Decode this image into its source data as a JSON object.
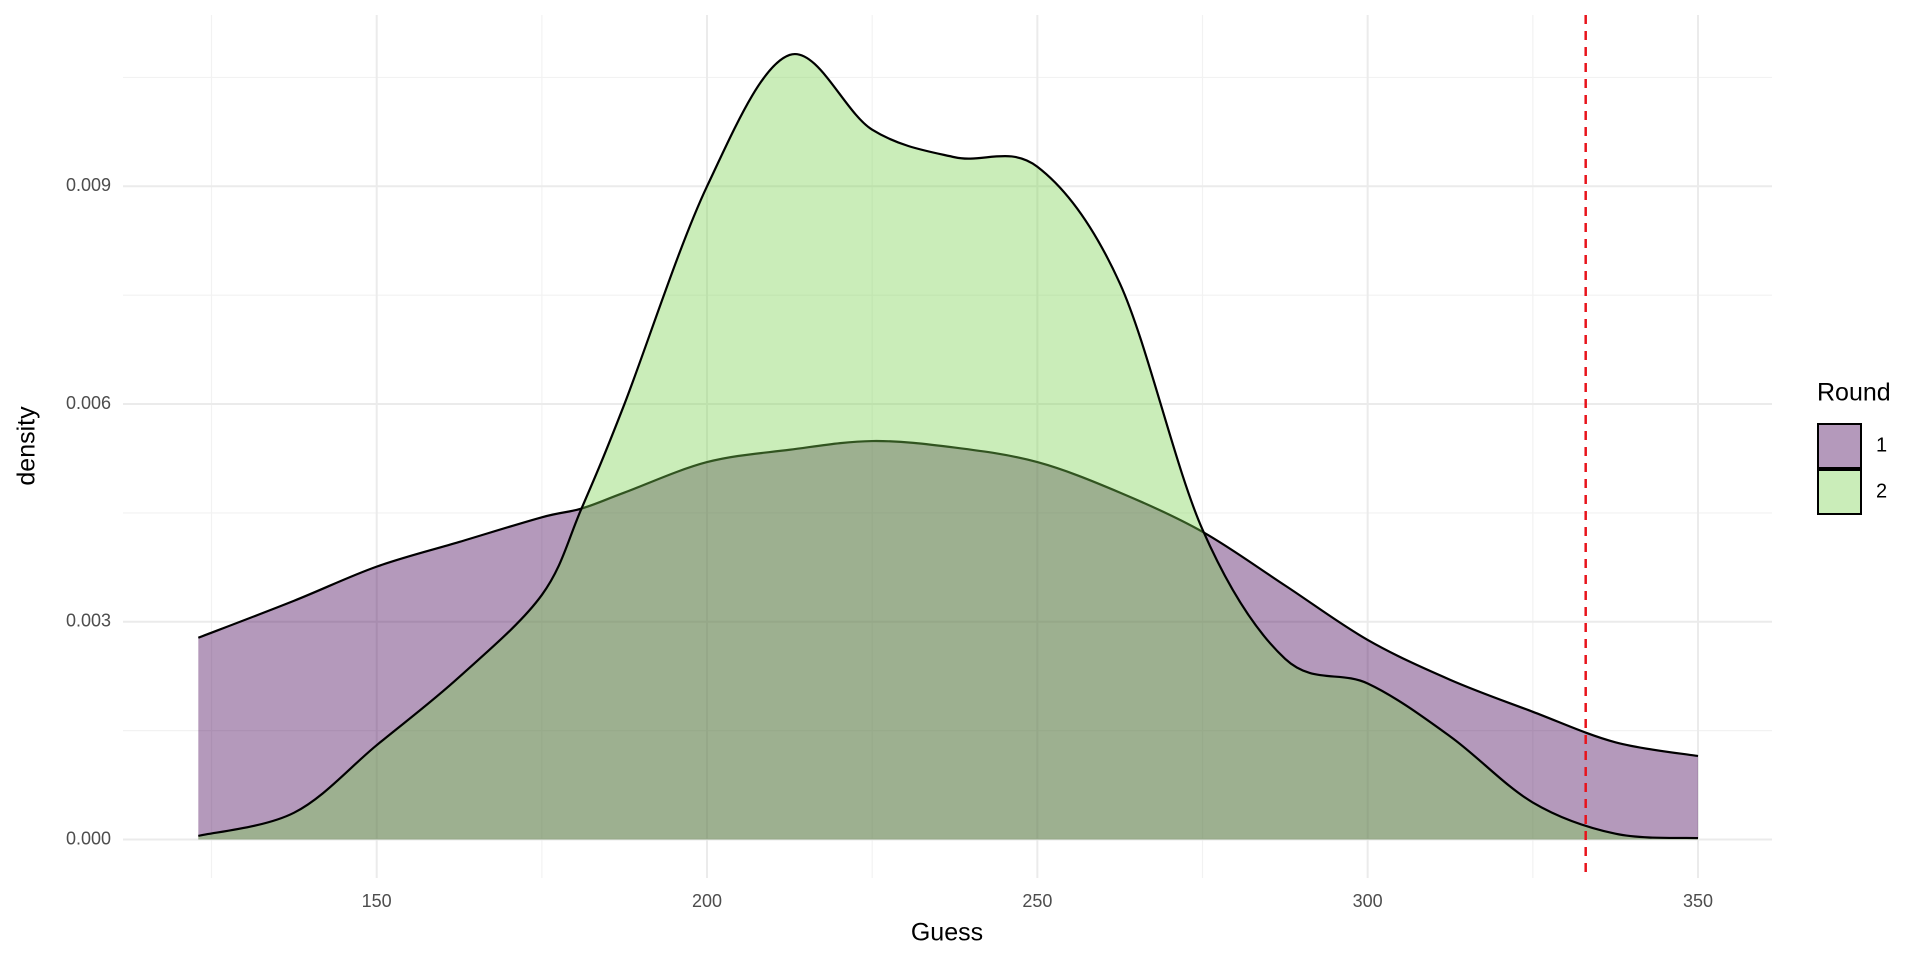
{
  "chart_data": {
    "type": "density",
    "x_label": "Guess",
    "y_label": "density",
    "x": [
      123,
      137.5,
      150,
      162.5,
      175,
      181,
      187.5,
      200,
      212.5,
      225,
      237.5,
      250,
      262.5,
      275,
      287.5,
      300,
      312.5,
      325,
      337.5,
      350
    ],
    "series": [
      {
        "name": "1",
        "color": "#440154",
        "values": [
          0.00278,
          0.00329,
          0.00376,
          0.0041,
          0.00444,
          0.00456,
          0.00478,
          0.0052,
          0.00537,
          0.00549,
          0.0054,
          0.0052,
          0.00478,
          0.00424,
          0.0035,
          0.00275,
          0.0022,
          0.00176,
          0.00134,
          0.00115
        ]
      },
      {
        "name": "2",
        "color": "#7AD151",
        "values": [
          5e-05,
          0.00037,
          0.0013,
          0.00224,
          0.00337,
          0.00456,
          0.006,
          0.009,
          0.01081,
          0.00978,
          0.0094,
          0.00927,
          0.00766,
          0.00427,
          0.00249,
          0.00215,
          0.00142,
          0.00051,
          8e-05,
          2e-05
        ]
      }
    ],
    "fill_opacity": 0.4,
    "legend_title": "Round",
    "legend": "right",
    "vline": 333,
    "vline_color": "#e8141c",
    "xlim": [
      111.6,
      361.2
    ],
    "xticks": [
      150,
      200,
      250,
      300,
      350
    ],
    "ylim": [
      -0.00053,
      0.01136
    ],
    "yticks": [
      {
        "value": 0,
        "label": "0.000"
      },
      0.003,
      0.006,
      0.009
    ],
    "grid": true
  }
}
